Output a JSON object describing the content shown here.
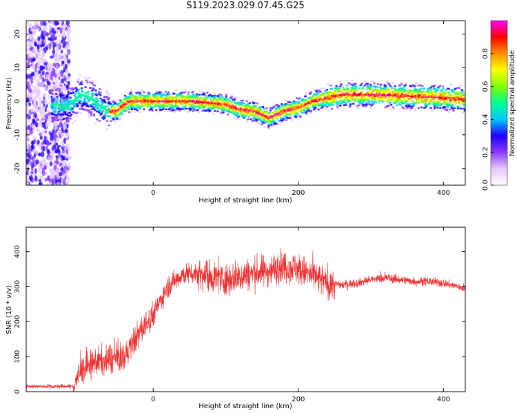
{
  "title": "S119.2023.029.07.45.G25",
  "colors": {
    "snr_line": "#f03030",
    "axis": "#000000",
    "colormap": [
      "#ffffff",
      "#e6c8ff",
      "#8a3cff",
      "#2000ff",
      "#00c8ff",
      "#00ff90",
      "#80ff00",
      "#ffff00",
      "#ff9000",
      "#ff0000",
      "#ff00ff"
    ]
  },
  "chart_data": [
    {
      "type": "heatmap",
      "xlabel": "Height of straight line (km)",
      "ylabel": "Frequency (Hz)",
      "xlim": [
        -175,
        430
      ],
      "ylim": [
        -25,
        24
      ],
      "x_ticks": [
        0,
        200,
        400
      ],
      "y_ticks": [
        -20,
        -10,
        0,
        10,
        20
      ],
      "colorbar": {
        "label": "Normalized spectral amplitude",
        "range": [
          0,
          1
        ],
        "ticks": [
          "0.0",
          "0.2",
          "0.4",
          "0.6",
          "0.8"
        ]
      },
      "ridge_frequency": {
        "x": [
          -130,
          -120,
          -110,
          -100,
          -90,
          -80,
          -70,
          -60,
          -50,
          -40,
          -30,
          0,
          50,
          80,
          100,
          120,
          140,
          150,
          160,
          170,
          180,
          200,
          220,
          240,
          260,
          300,
          350,
          400,
          430
        ],
        "y": [
          -1,
          -2,
          0,
          2,
          1.5,
          0,
          -2,
          -3,
          -3,
          -1,
          0,
          0,
          0,
          -0.5,
          -1,
          -2.5,
          -3,
          -4,
          -5,
          -4,
          -3,
          -2,
          0,
          1,
          2,
          2,
          1.5,
          1,
          0.5
        ]
      }
    },
    {
      "type": "line",
      "xlabel": "Height of straight line (km)",
      "ylabel": "SNR (10 * v/v)",
      "xlim": [
        -175,
        430
      ],
      "ylim": [
        0,
        470
      ],
      "x_ticks": [
        0,
        200,
        400
      ],
      "y_ticks": [
        0,
        100,
        200,
        300,
        400
      ],
      "series": [
        {
          "x": [
            -175,
            -140,
            -110,
            -100,
            -80,
            -60,
            -40,
            -20,
            0,
            20,
            40,
            60,
            80,
            100,
            120,
            140,
            160,
            180,
            200,
            220,
            240,
            260,
            280,
            300,
            320,
            340,
            360,
            380,
            400,
            430
          ],
          "y": [
            15,
            15,
            15,
            60,
            85,
            90,
            100,
            165,
            220,
            300,
            335,
            340,
            330,
            320,
            330,
            340,
            345,
            360,
            350,
            330,
            310,
            305,
            310,
            320,
            325,
            320,
            315,
            315,
            310,
            295
          ]
        }
      ]
    }
  ]
}
